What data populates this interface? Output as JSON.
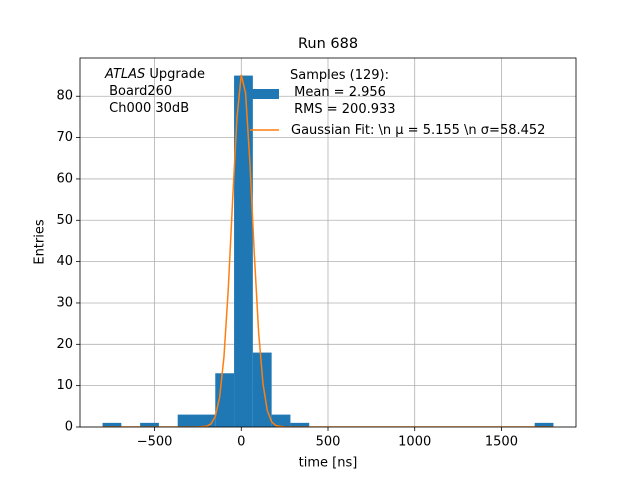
{
  "chart_data": {
    "type": "histogram",
    "title": "Run 688",
    "xlabel": "time [ns]",
    "ylabel": "Entries",
    "annotation": {
      "italic": "ATLAS",
      "text": " Upgrade\n Board260\n Ch000 30dB"
    },
    "bins": [
      -800,
      -691.667,
      -583.333,
      -475,
      -366.667,
      -258.333,
      -150,
      -41.667,
      66.667,
      175,
      283.333,
      391.667,
      500,
      608.333,
      716.667,
      825,
      933.333,
      1041.667,
      1150,
      1258.333,
      1366.667,
      1475,
      1583.333,
      1691.667,
      1800
    ],
    "series": [
      {
        "name": "Samples (129):\n Mean = 2.956\n RMS = 200.933",
        "color": "#1f77b4",
        "values": [
          1,
          0,
          1,
          0,
          3,
          3,
          13,
          85,
          18,
          3,
          1,
          0,
          0,
          0,
          0,
          0,
          0,
          0,
          0,
          0,
          0,
          0,
          0,
          1
        ]
      },
      {
        "name": "Gaussian Fit: \\n μ = 5.155 \\n σ=58.452",
        "color": "#ff7f0e",
        "type": "line",
        "x": [
          -800,
          -300,
          -250,
          -200,
          -175,
          -150,
          -125,
          -100,
          -75,
          -50,
          -25,
          0,
          25,
          50,
          75,
          100,
          125,
          150,
          175,
          200,
          250,
          300,
          1800
        ],
        "values": [
          0,
          0,
          0,
          0.18,
          0.74,
          2.52,
          7.17,
          16.9,
          33.4,
          54.8,
          74.8,
          85.2,
          80.7,
          63.7,
          41.9,
          22.9,
          10.5,
          3.97,
          1.26,
          0.33,
          0,
          0,
          0
        ]
      }
    ],
    "xlim": [
      -930,
      1930
    ],
    "ylim": [
      0,
      89.25
    ],
    "xticks": [
      {
        "value": -500,
        "label": "−500"
      },
      0,
      500,
      1000,
      1500
    ],
    "yticks": [
      0,
      10,
      20,
      30,
      40,
      50,
      60,
      70,
      80
    ],
    "grid": true
  }
}
